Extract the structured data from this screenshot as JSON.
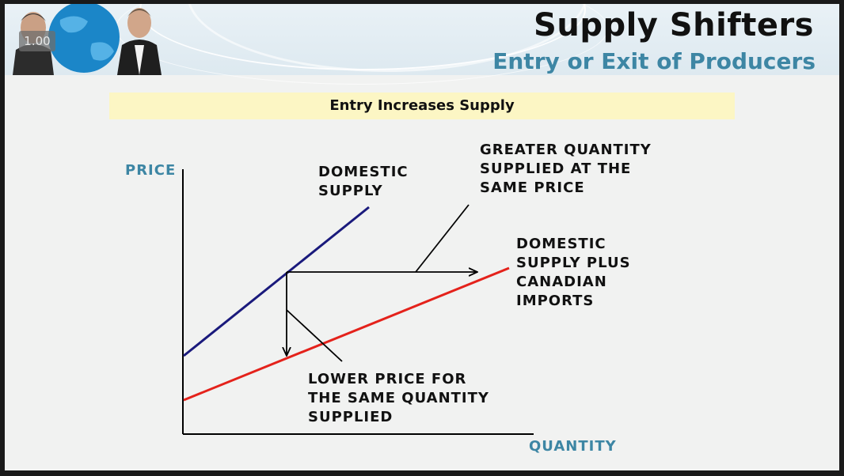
{
  "header": {
    "title": "Supply Shifters",
    "subtitle": "Entry or Exit of Producers",
    "timer": "1.00"
  },
  "banner": {
    "text": "Entry Increases Supply"
  },
  "diagram": {
    "axis_y_label": "PRICE",
    "axis_x_label": "QUANTITY",
    "domestic_supply": [
      "DOMESTIC",
      "SUPPLY"
    ],
    "combined_supply": [
      "DOMESTIC",
      "SUPPLY PLUS",
      "CANADIAN",
      "IMPORTS"
    ],
    "greater_quantity": [
      "GREATER QUANTITY",
      "SUPPLIED AT THE",
      "SAME PRICE"
    ],
    "lower_price": [
      "LOWER PRICE FOR",
      "THE SAME QUANTITY",
      "SUPPLIED"
    ]
  },
  "colors": {
    "domestic_line": "#1a1a7c",
    "combined_line": "#e4221b",
    "axis_label": "#3d86a4",
    "banner": "#fcf6c4"
  }
}
